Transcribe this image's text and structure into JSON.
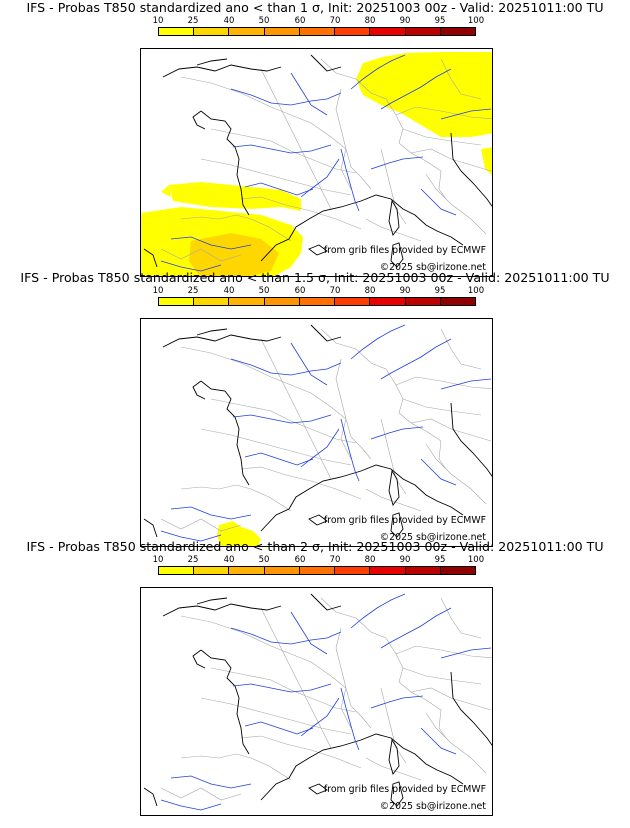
{
  "colorbar": {
    "tick_labels": [
      "10",
      "25",
      "40",
      "50",
      "60",
      "70",
      "80",
      "90",
      "95",
      "100"
    ],
    "colors": [
      "#ffff00",
      "#ffd700",
      "#ffb300",
      "#ff9500",
      "#ff7000",
      "#ff3d00",
      "#e60000",
      "#bb0000",
      "#8f0000",
      "#5a0000"
    ]
  },
  "panels": [
    {
      "title": "IFS - Probas T850  standardized ano < than 1 σ, Init: 20251003 00z - Valid: 20251011:00 TU",
      "source_text": "from grib files provided by ECMWF",
      "copyright": "©2025 sb@irizone.net"
    },
    {
      "title": "IFS - Probas T850  standardized ano < than 1.5 σ, Init: 20251003 00z - Valid: 20251011:00 TU",
      "source_text": "from grib files provided by ECMWF",
      "copyright": "©2025 sb@irizone.net"
    },
    {
      "title": "IFS - Probas T850  standardized ano < than 2 σ, Init: 20251003 00z - Valid: 20251011:00 TU",
      "source_text": "from grib files provided by ECMWF",
      "copyright": "©2025 sb@irizone.net"
    }
  ]
}
